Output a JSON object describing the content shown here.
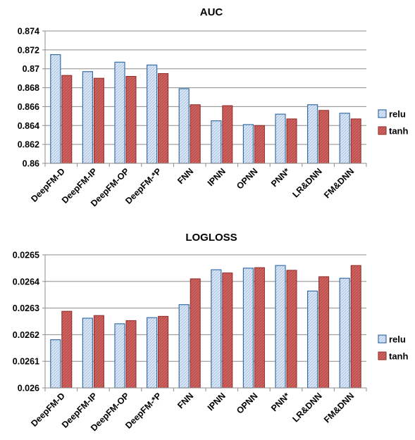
{
  "colors": {
    "relu_fill": "#dbe7f5",
    "relu_stroke": "#3a6ea5",
    "tanh_fill": "#c0504d",
    "tanh_stroke": "#8b2a27",
    "grid": "#8c8c8c"
  },
  "chart_data": [
    {
      "type": "bar",
      "title": "AUC",
      "categories": [
        "DeepFM-D",
        "DeepFM-IP",
        "DeepFM-OP",
        "DeepFM-*P",
        "FNN",
        "IPNN",
        "OPNN",
        "PNN*",
        "LR&DNN",
        "FM&DNN"
      ],
      "series": [
        {
          "name": "relu",
          "values": [
            0.8715,
            0.8697,
            0.8707,
            0.8704,
            0.8679,
            0.8645,
            0.8641,
            0.8652,
            0.8662,
            0.8653
          ]
        },
        {
          "name": "tanh",
          "values": [
            0.8693,
            0.869,
            0.8692,
            0.8695,
            0.8662,
            0.8661,
            0.864,
            0.8647,
            0.8656,
            0.8647
          ]
        }
      ],
      "ylim": [
        0.86,
        0.874
      ],
      "yticks": [
        "0.86",
        "0.862",
        "0.864",
        "0.866",
        "0.868",
        "0.87",
        "0.872",
        "0.874"
      ],
      "grid": true,
      "legend": "right"
    },
    {
      "type": "bar",
      "title": "LOGLOSS",
      "categories": [
        "DeepFM-D",
        "DeepFM-IP",
        "DeepFM-OP",
        "DeepFM-*P",
        "FNN",
        "IPNN",
        "OPNN",
        "PNN*",
        "LR&DNN",
        "FM&DNN"
      ],
      "series": [
        {
          "name": "relu",
          "values": [
            0.026181,
            0.026262,
            0.026241,
            0.026264,
            0.026313,
            0.026444,
            0.02645,
            0.02646,
            0.026364,
            0.026412
          ]
        },
        {
          "name": "tanh",
          "values": [
            0.026288,
            0.026272,
            0.026253,
            0.026269,
            0.02641,
            0.026432,
            0.026452,
            0.026442,
            0.026418,
            0.02646
          ]
        }
      ],
      "ylim": [
        0.026,
        0.0265
      ],
      "yticks": [
        "0.026",
        "0.0261",
        "0.0262",
        "0.0263",
        "0.0264",
        "0.0265"
      ],
      "grid": true,
      "legend": "right"
    }
  ]
}
